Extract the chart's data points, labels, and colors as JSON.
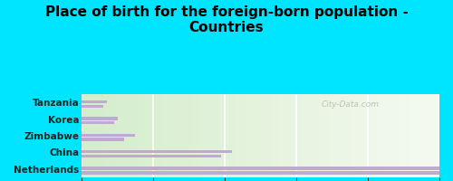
{
  "title": "Place of birth for the foreign-born population -\nCountries",
  "categories": [
    "Netherlands",
    "China",
    "Zimbabwe",
    "Korea",
    "Tanzania"
  ],
  "values1": [
    100,
    42,
    15,
    10,
    7
  ],
  "values2": [
    100,
    39,
    12,
    9,
    6
  ],
  "bar_color": "#c0aad0",
  "background_color": "#00e5ff",
  "xlim": [
    0,
    100
  ],
  "watermark": "City-Data.com",
  "title_fontsize": 11,
  "label_fontsize": 7.5,
  "tick_fontsize": 8
}
